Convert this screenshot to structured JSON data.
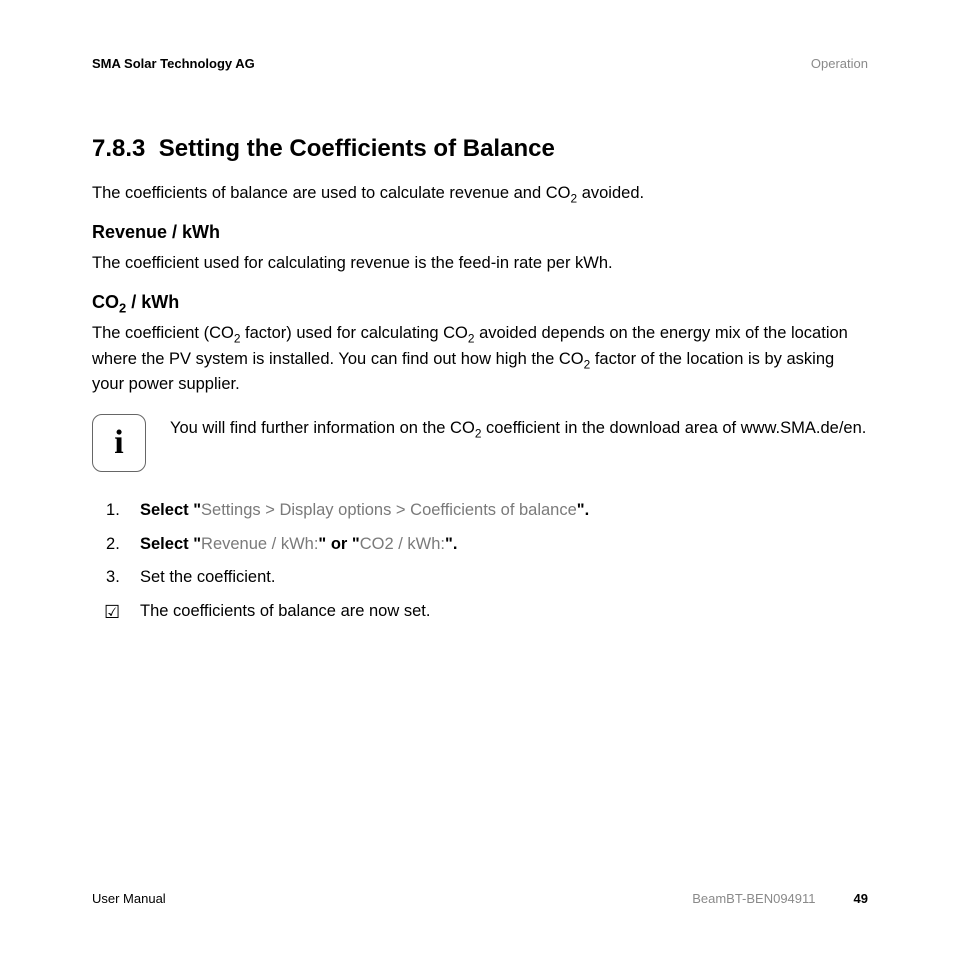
{
  "header": {
    "company": "SMA Solar Technology AG",
    "section": "Operation"
  },
  "section_number": "7.8.3",
  "section_title": "Setting the Coefficients of Balance",
  "intro_pre": "The coefficients of balance are used to calculate revenue and CO",
  "intro_post": " avoided.",
  "sub_revenue": {
    "heading": "Revenue / kWh",
    "body": "The coefficient used for calculating revenue is the feed-in rate per kWh."
  },
  "sub_co2": {
    "heading_pre": "CO",
    "heading_post": " / kWh",
    "p1_a": "The coefficient (CO",
    "p1_b": " factor) used for calculating CO",
    "p1_c": " avoided depends on the energy mix of the location where the PV system is installed. You can find out how high the CO",
    "p1_d": " factor of the location is by asking your power supplier."
  },
  "info_note": {
    "pre": "You will find further information on the CO",
    "post": " coefficient in the download area of www.SMA.de/en."
  },
  "steps": {
    "s1_strong_pre": "Select \"",
    "s1_path": "Settings > Display options > Coefficients of balance",
    "s1_strong_post": "\".",
    "s2_a": "Select \"",
    "s2_opt1": "Revenue / kWh:",
    "s2_mid": "\" or \"",
    "s2_opt2": "CO2 / kWh:",
    "s2_end": "\".",
    "s3": "Set the coefficient."
  },
  "result": "The coefficients of balance are now set.",
  "footer": {
    "left": "User Manual",
    "docid": "BeamBT-BEN094911",
    "page": "49"
  },
  "sub2": "2"
}
